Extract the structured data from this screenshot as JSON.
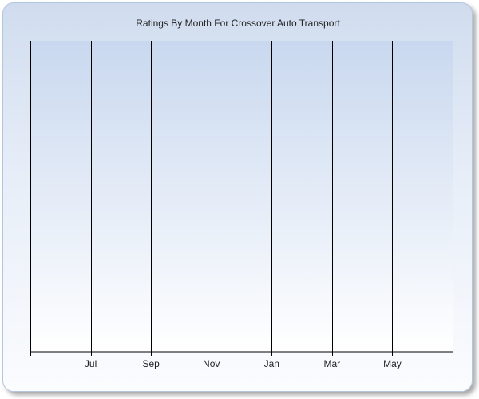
{
  "chart_data": {
    "type": "bar",
    "title": "Ratings By Month For Crossover Auto Transport",
    "xlabel": "",
    "ylabel": "",
    "tick_labels": [
      "Jul",
      "Sep",
      "Nov",
      "Jan",
      "Mar",
      "May"
    ],
    "series": [],
    "grid": true,
    "legend": "none",
    "colors": {
      "plot_top": "#c9d8ef",
      "plot_bottom": "#ffffff",
      "grid": "#000000",
      "text": "#222222"
    }
  }
}
